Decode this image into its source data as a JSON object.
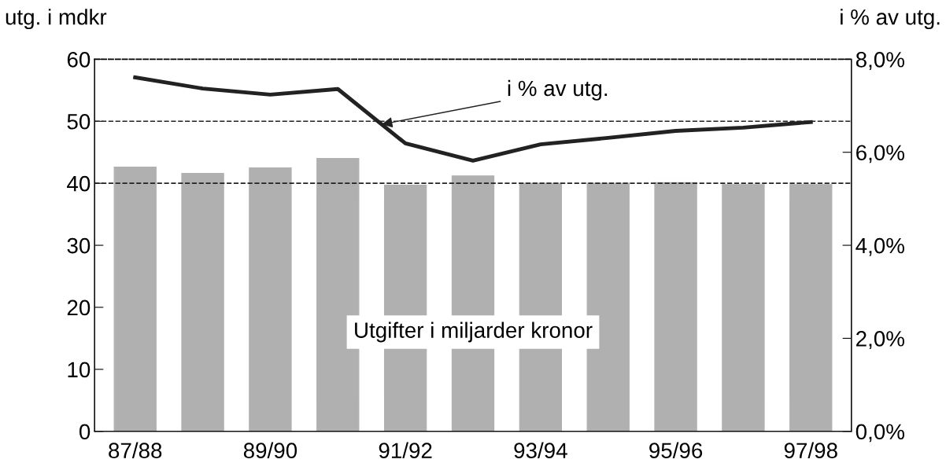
{
  "chart_data": {
    "type": "bar",
    "categories": [
      "87/88",
      null,
      "89/90",
      null,
      "91/92",
      null,
      "93/94",
      null,
      "95/96",
      null,
      "97/98"
    ],
    "ylabel": "utg. i mdkr",
    "y2label": "i % av utg.",
    "series": [
      {
        "color": "#b0b0b0",
        "values": [
          42.6,
          41.6,
          42.5,
          44.0,
          39.7,
          41.2,
          40.0,
          40.0,
          40.1,
          39.8,
          39.8
        ]
      },
      {
        "type": "line",
        "axis": "y2",
        "color": "#222222",
        "values": [
          7.61,
          7.37,
          7.24,
          7.36,
          6.19,
          5.82,
          6.17,
          6.31,
          6.46,
          6.53,
          6.65
        ]
      }
    ],
    "ylim": [
      0,
      60
    ],
    "yticks": [
      0,
      10,
      20,
      30,
      40,
      50,
      60
    ],
    "y2lim": [
      0,
      8
    ],
    "y2ticks": [
      {
        "value": 0,
        "label": "0,0%"
      },
      {
        "value": 2,
        "label": "2,0%"
      },
      {
        "value": 4,
        "label": "4,0%"
      },
      {
        "value": 6,
        "label": "6,0%"
      },
      {
        "value": 8,
        "label": "8,0%"
      }
    ],
    "ref_lines": [
      {
        "axis": "y",
        "value": 40,
        "line_style": "dashed"
      },
      {
        "axis": "y",
        "value": 50,
        "line_style": "dashed"
      }
    ],
    "annotations": [
      {
        "text": "i % av utg.",
        "y": 49.5
      },
      "Utgifter i miljarder kronor"
    ],
    "grid": false,
    "legend": false,
    "marker": "none",
    "line_style": "solid"
  }
}
